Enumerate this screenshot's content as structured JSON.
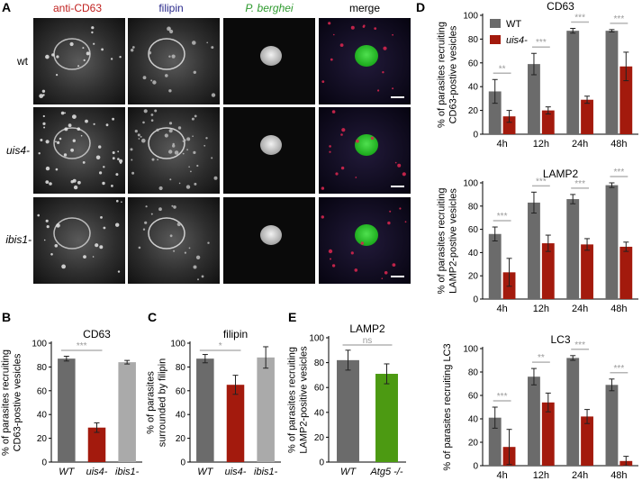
{
  "colors": {
    "wt": "#6b6b6b",
    "uis4": "#a31a0d",
    "ibis1": "#aaaaaa",
    "atg5": "#4c9a12",
    "cd63_label": "#c0201e",
    "filipin_label": "#2a2a8c",
    "pb_label": "#2e9a2e",
    "sig": "#b4b4b4"
  },
  "panel_a": {
    "letter": "A",
    "columns": [
      "anti-CD63",
      "filipin",
      "P. berghei",
      "merge"
    ],
    "rows": [
      "wt",
      "uis4-",
      "ibis1-"
    ]
  },
  "chart_data": [
    {
      "panel": "B",
      "type": "bar",
      "title": "CD63",
      "ylabel_lines": [
        "% of parasites recruiting",
        "CD63-postive vesicles"
      ],
      "categories": [
        "WT",
        "uis4-",
        "ibis1-"
      ],
      "values": [
        87,
        29,
        84
      ],
      "errors": [
        2,
        4,
        1.5
      ],
      "colors": [
        "#6b6b6b",
        "#a31a0d",
        "#aaaaaa"
      ],
      "ylim": [
        0,
        100
      ],
      "yticks": [
        0,
        20,
        40,
        60,
        80,
        100
      ],
      "significance": [
        {
          "from": 0,
          "to": 1,
          "label": "***"
        }
      ]
    },
    {
      "panel": "C",
      "type": "bar",
      "title": "filipin",
      "ylabel_lines": [
        "% of parasites",
        "surrounded by filipin"
      ],
      "categories": [
        "WT",
        "uis4-",
        "ibis1-"
      ],
      "values": [
        87,
        65,
        88
      ],
      "errors": [
        3.5,
        8,
        9
      ],
      "colors": [
        "#6b6b6b",
        "#a31a0d",
        "#aaaaaa"
      ],
      "ylim": [
        0,
        100
      ],
      "yticks": [
        0,
        20,
        40,
        60,
        80,
        100
      ],
      "significance": [
        {
          "from": 0,
          "to": 1,
          "label": "*"
        }
      ]
    },
    {
      "panel": "E",
      "type": "bar",
      "title": "LAMP2",
      "ylabel_lines": [
        "% of parasites recruiting",
        "LAMP2-positive vesicles"
      ],
      "categories": [
        "WT",
        "Atg5 -/-"
      ],
      "values": [
        82,
        71
      ],
      "errors": [
        8,
        8
      ],
      "colors": [
        "#6b6b6b",
        "#4c9a12"
      ],
      "ylim": [
        0,
        100
      ],
      "yticks": [
        0,
        20,
        40,
        60,
        80,
        100
      ],
      "significance": [
        {
          "from": 0,
          "to": 1,
          "label": "ns"
        }
      ]
    },
    {
      "panel": "D",
      "type": "bar",
      "title": "CD63",
      "ylabel_lines": [
        "% of parasites recruiting",
        "CD63-postive vesicles"
      ],
      "categories": [
        "4h",
        "12h",
        "24h",
        "48h"
      ],
      "legend": "top-left",
      "series": [
        {
          "name": "WT",
          "values": [
            36,
            59,
            87,
            87
          ],
          "errors": [
            10,
            9,
            2,
            1
          ]
        },
        {
          "name": "uis4-",
          "values": [
            15,
            20,
            29,
            57
          ],
          "errors": [
            5,
            3,
            3,
            12
          ]
        }
      ],
      "ylim": [
        0,
        100
      ],
      "yticks": [
        0,
        20,
        40,
        60,
        80,
        100
      ],
      "significance": [
        "**",
        "***",
        "***",
        "***"
      ]
    },
    {
      "panel": "D",
      "type": "bar",
      "title": "LAMP2",
      "ylabel_lines": [
        "% of parasites recruiting",
        "LAMP2-postive vesicles"
      ],
      "categories": [
        "4h",
        "12h",
        "24h",
        "48h"
      ],
      "series": [
        {
          "values": [
            56,
            83,
            86,
            98
          ],
          "errors": [
            6,
            9,
            4,
            2
          ]
        },
        {
          "values": [
            23,
            48,
            47,
            45
          ],
          "errors": [
            12,
            7,
            5,
            4
          ]
        }
      ],
      "ylim": [
        0,
        100
      ],
      "yticks": [
        0,
        20,
        40,
        60,
        80,
        100
      ],
      "significance": [
        "***",
        "***",
        "***",
        "***"
      ]
    },
    {
      "panel": "D",
      "type": "bar",
      "title": "LC3",
      "ylabel_lines": [
        "% of parasites recruiting LC3"
      ],
      "categories": [
        "4h",
        "12h",
        "24h",
        "48h"
      ],
      "series": [
        {
          "values": [
            41,
            76,
            92,
            69
          ],
          "errors": [
            9,
            7,
            2,
            5
          ]
        },
        {
          "values": [
            16,
            54,
            42,
            4
          ],
          "errors": [
            15,
            8,
            6,
            4
          ]
        }
      ],
      "ylim": [
        0,
        100
      ],
      "yticks": [
        0,
        20,
        40,
        60,
        80,
        100
      ],
      "significance": [
        "***",
        "**",
        "***",
        "***"
      ]
    }
  ]
}
